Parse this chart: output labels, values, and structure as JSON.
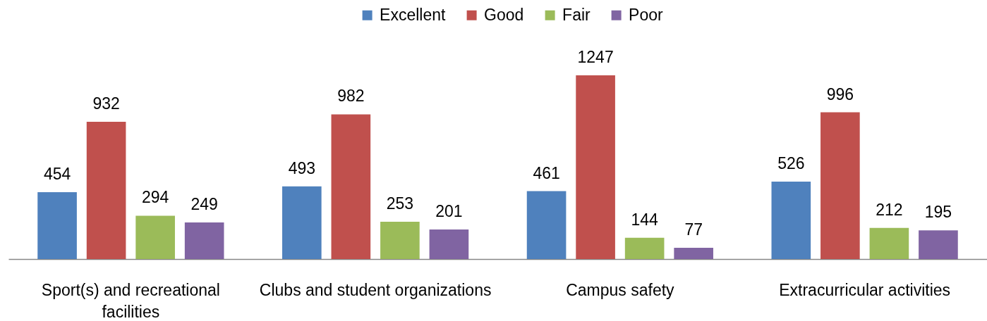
{
  "chart_data": {
    "type": "bar",
    "categories": [
      "Sport(s) and recreational facilities",
      "Clubs and student organizations",
      "Campus safety",
      "Extracurricular activities"
    ],
    "series": [
      {
        "name": "Excellent",
        "color": "#4f81bd",
        "values": [
          454,
          493,
          461,
          526
        ]
      },
      {
        "name": "Good",
        "color": "#c0504d",
        "values": [
          932,
          982,
          1247,
          996
        ]
      },
      {
        "name": "Fair",
        "color": "#9bbb59",
        "values": [
          294,
          253,
          144,
          212
        ]
      },
      {
        "name": "Poor",
        "color": "#8064a2",
        "values": [
          249,
          201,
          77,
          195
        ]
      }
    ],
    "data_labels": true,
    "legend": "top",
    "tick_labels": "x"
  }
}
